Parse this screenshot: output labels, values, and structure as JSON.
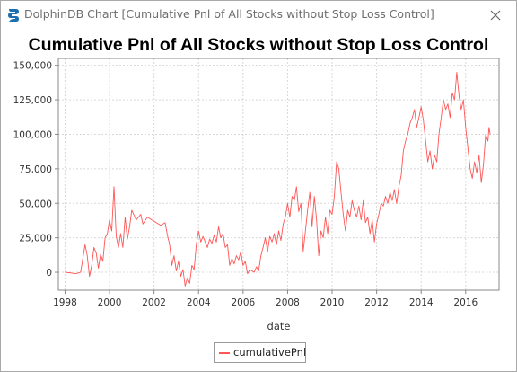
{
  "window": {
    "title": "DolphinDB Chart [Cumulative Pnl of All Stocks without Stop Loss Control]",
    "accent_color": "#1a6fb0"
  },
  "chart_data": {
    "type": "line",
    "title": "Cumulative Pnl of All Stocks without Stop Loss Control",
    "xlabel": "date",
    "ylabel": "",
    "xlim": [
      1997.7,
      2017.5
    ],
    "ylim": [
      -13000,
      155000
    ],
    "x_ticks": [
      "1998",
      "2000",
      "2002",
      "2004",
      "2006",
      "2008",
      "2010",
      "2012",
      "2014",
      "2016"
    ],
    "y_ticks": [
      "150,000",
      "125,000",
      "100,000",
      "75,000",
      "50,000",
      "25,000",
      "0"
    ],
    "grid": true,
    "legend_position": "bottom",
    "series": [
      {
        "name": "cumulativePnl",
        "color": "#ff5555",
        "points": [
          [
            1998.0,
            0
          ],
          [
            1998.5,
            -1000
          ],
          [
            1998.7,
            0
          ],
          [
            1998.9,
            20000
          ],
          [
            1999.0,
            12000
          ],
          [
            1999.1,
            -3000
          ],
          [
            1999.2,
            5000
          ],
          [
            1999.3,
            18000
          ],
          [
            1999.4,
            14000
          ],
          [
            1999.5,
            3000
          ],
          [
            1999.6,
            13000
          ],
          [
            1999.7,
            8000
          ],
          [
            1999.8,
            25000
          ],
          [
            1999.9,
            28000
          ],
          [
            2000.0,
            38000
          ],
          [
            2000.1,
            30000
          ],
          [
            2000.2,
            62000
          ],
          [
            2000.3,
            26000
          ],
          [
            2000.4,
            18000
          ],
          [
            2000.5,
            28000
          ],
          [
            2000.6,
            18000
          ],
          [
            2000.7,
            40000
          ],
          [
            2000.8,
            24000
          ],
          [
            2000.9,
            33000
          ],
          [
            2001.0,
            45000
          ],
          [
            2001.2,
            38000
          ],
          [
            2001.4,
            42000
          ],
          [
            2001.5,
            35000
          ],
          [
            2001.7,
            40000
          ],
          [
            2001.9,
            38000
          ],
          [
            2002.1,
            36000
          ],
          [
            2002.3,
            34000
          ],
          [
            2002.5,
            36000
          ],
          [
            2002.6,
            27000
          ],
          [
            2002.7,
            20000
          ],
          [
            2002.8,
            5000
          ],
          [
            2002.9,
            12000
          ],
          [
            2003.0,
            1000
          ],
          [
            2003.1,
            8000
          ],
          [
            2003.2,
            -3000
          ],
          [
            2003.3,
            2000
          ],
          [
            2003.4,
            -10000
          ],
          [
            2003.5,
            -4000
          ],
          [
            2003.6,
            -8000
          ],
          [
            2003.7,
            5000
          ],
          [
            2003.8,
            2000
          ],
          [
            2003.9,
            20000
          ],
          [
            2004.0,
            30000
          ],
          [
            2004.1,
            22000
          ],
          [
            2004.2,
            26000
          ],
          [
            2004.4,
            18000
          ],
          [
            2004.5,
            24000
          ],
          [
            2004.6,
            21000
          ],
          [
            2004.7,
            27000
          ],
          [
            2004.8,
            22000
          ],
          [
            2004.9,
            33000
          ],
          [
            2005.0,
            25000
          ],
          [
            2005.1,
            28000
          ],
          [
            2005.2,
            18000
          ],
          [
            2005.3,
            20000
          ],
          [
            2005.4,
            5000
          ],
          [
            2005.5,
            10000
          ],
          [
            2005.6,
            6000
          ],
          [
            2005.7,
            12000
          ],
          [
            2005.8,
            9000
          ],
          [
            2005.9,
            15000
          ],
          [
            2006.0,
            5000
          ],
          [
            2006.1,
            8000
          ],
          [
            2006.2,
            -1000
          ],
          [
            2006.3,
            2000
          ],
          [
            2006.4,
            1000
          ],
          [
            2006.5,
            0
          ],
          [
            2006.6,
            4000
          ],
          [
            2006.7,
            1000
          ],
          [
            2006.8,
            12000
          ],
          [
            2006.9,
            18000
          ],
          [
            2007.0,
            25000
          ],
          [
            2007.1,
            15000
          ],
          [
            2007.2,
            26000
          ],
          [
            2007.3,
            22000
          ],
          [
            2007.4,
            28000
          ],
          [
            2007.5,
            20000
          ],
          [
            2007.6,
            30000
          ],
          [
            2007.7,
            23000
          ],
          [
            2007.8,
            35000
          ],
          [
            2007.9,
            40000
          ],
          [
            2008.0,
            50000
          ],
          [
            2008.1,
            40000
          ],
          [
            2008.2,
            55000
          ],
          [
            2008.3,
            52000
          ],
          [
            2008.4,
            62000
          ],
          [
            2008.5,
            44000
          ],
          [
            2008.6,
            50000
          ],
          [
            2008.7,
            15000
          ],
          [
            2008.8,
            30000
          ],
          [
            2008.9,
            45000
          ],
          [
            2009.0,
            58000
          ],
          [
            2009.1,
            33000
          ],
          [
            2009.2,
            55000
          ],
          [
            2009.3,
            38000
          ],
          [
            2009.4,
            12000
          ],
          [
            2009.5,
            30000
          ],
          [
            2009.6,
            25000
          ],
          [
            2009.7,
            40000
          ],
          [
            2009.8,
            28000
          ],
          [
            2009.9,
            45000
          ],
          [
            2010.0,
            42000
          ],
          [
            2010.1,
            55000
          ],
          [
            2010.2,
            80000
          ],
          [
            2010.3,
            75000
          ],
          [
            2010.4,
            58000
          ],
          [
            2010.5,
            42000
          ],
          [
            2010.6,
            30000
          ],
          [
            2010.7,
            45000
          ],
          [
            2010.8,
            40000
          ],
          [
            2010.9,
            52000
          ],
          [
            2011.0,
            45000
          ],
          [
            2011.1,
            40000
          ],
          [
            2011.2,
            48000
          ],
          [
            2011.3,
            38000
          ],
          [
            2011.4,
            52000
          ],
          [
            2011.5,
            36000
          ],
          [
            2011.6,
            40000
          ],
          [
            2011.7,
            28000
          ],
          [
            2011.8,
            38000
          ],
          [
            2011.9,
            22000
          ],
          [
            2012.0,
            35000
          ],
          [
            2012.1,
            42000
          ],
          [
            2012.2,
            50000
          ],
          [
            2012.3,
            48000
          ],
          [
            2012.4,
            55000
          ],
          [
            2012.5,
            50000
          ],
          [
            2012.6,
            58000
          ],
          [
            2012.7,
            52000
          ],
          [
            2012.8,
            60000
          ],
          [
            2012.9,
            50000
          ],
          [
            2013.0,
            62000
          ],
          [
            2013.1,
            70000
          ],
          [
            2013.2,
            88000
          ],
          [
            2013.3,
            95000
          ],
          [
            2013.4,
            100000
          ],
          [
            2013.5,
            108000
          ],
          [
            2013.6,
            112000
          ],
          [
            2013.7,
            118000
          ],
          [
            2013.8,
            105000
          ],
          [
            2013.9,
            112000
          ],
          [
            2014.0,
            120000
          ],
          [
            2014.1,
            110000
          ],
          [
            2014.2,
            95000
          ],
          [
            2014.3,
            80000
          ],
          [
            2014.4,
            88000
          ],
          [
            2014.5,
            75000
          ],
          [
            2014.6,
            85000
          ],
          [
            2014.7,
            80000
          ],
          [
            2014.8,
            100000
          ],
          [
            2014.9,
            112000
          ],
          [
            2015.0,
            125000
          ],
          [
            2015.1,
            118000
          ],
          [
            2015.2,
            122000
          ],
          [
            2015.3,
            112000
          ],
          [
            2015.4,
            130000
          ],
          [
            2015.5,
            125000
          ],
          [
            2015.6,
            145000
          ],
          [
            2015.7,
            128000
          ],
          [
            2015.8,
            118000
          ],
          [
            2015.9,
            125000
          ],
          [
            2016.0,
            105000
          ],
          [
            2016.1,
            90000
          ],
          [
            2016.2,
            75000
          ],
          [
            2016.3,
            68000
          ],
          [
            2016.4,
            80000
          ],
          [
            2016.5,
            72000
          ],
          [
            2016.6,
            85000
          ],
          [
            2016.7,
            65000
          ],
          [
            2016.8,
            78000
          ],
          [
            2016.9,
            100000
          ],
          [
            2017.0,
            95000
          ],
          [
            2017.05,
            105000
          ],
          [
            2017.1,
            100000
          ]
        ]
      }
    ]
  }
}
